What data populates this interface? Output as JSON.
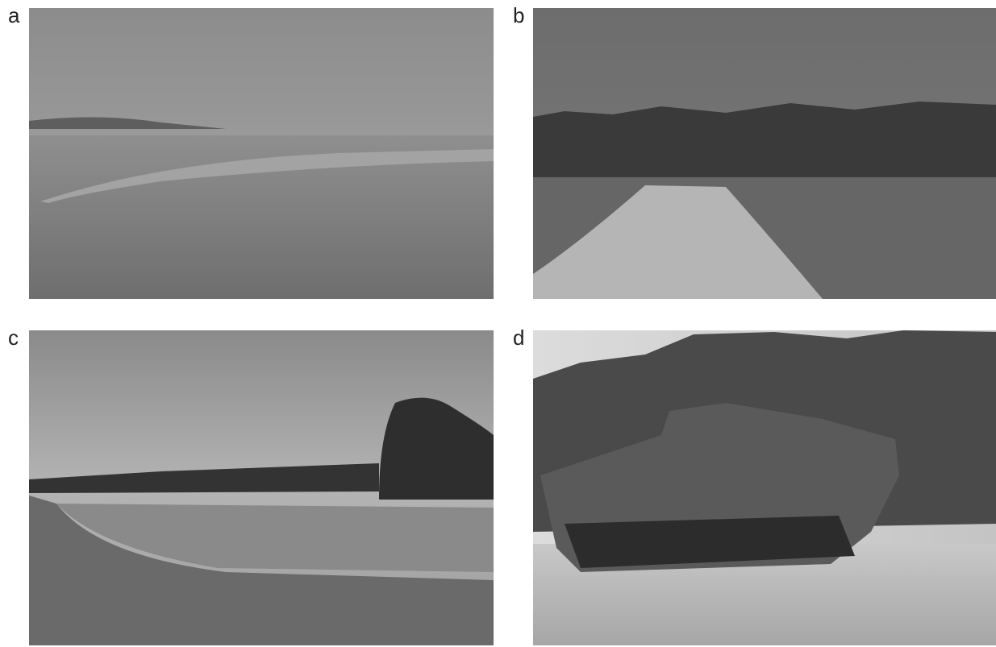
{
  "panels": [
    {
      "label": "a"
    },
    {
      "label": "b"
    },
    {
      "label": "c"
    },
    {
      "label": "d"
    }
  ]
}
